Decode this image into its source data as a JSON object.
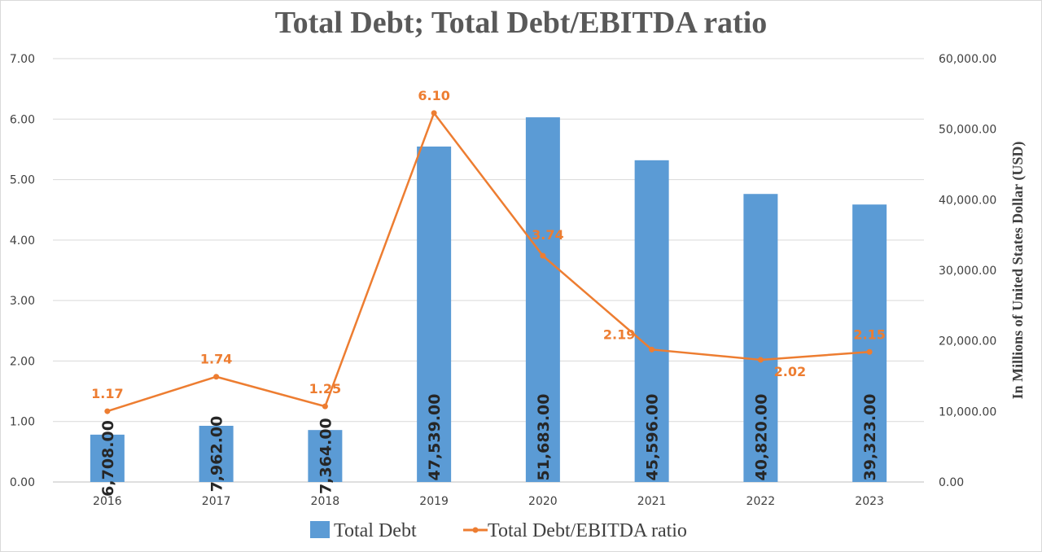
{
  "chart_data": {
    "type": "bar+line",
    "title": "Total Debt; Total Debt/EBITDA ratio",
    "categories": [
      "2016",
      "2017",
      "2018",
      "2019",
      "2020",
      "2021",
      "2022",
      "2023"
    ],
    "series": [
      {
        "name": "Total Debt",
        "type": "bar",
        "axis": "right",
        "color": "#5b9bd5",
        "values": [
          6708,
          7962,
          7364,
          47539,
          51683,
          45596,
          40820,
          39323
        ],
        "labels": [
          "6,708.00",
          "7,962.00",
          "7,364.00",
          "47,539.00",
          "51,683.00",
          "45,596.00",
          "40,820.00",
          "39,323.00"
        ]
      },
      {
        "name": "Total Debt/EBITDA ratio",
        "type": "line",
        "axis": "left",
        "color": "#ed7d31",
        "values": [
          1.17,
          1.74,
          1.25,
          6.1,
          3.74,
          2.19,
          2.02,
          2.15
        ],
        "labels": [
          "1.17",
          "1.74",
          "1.25",
          "6.10",
          "3.74",
          "2.19",
          "2.02",
          "2.15"
        ]
      }
    ],
    "y_left": {
      "range": [
        0,
        7
      ],
      "ticks": [
        "0.00",
        "1.00",
        "2.00",
        "3.00",
        "4.00",
        "5.00",
        "6.00",
        "7.00"
      ]
    },
    "y_right": {
      "label": "In Millions of United States Dollar (USD)",
      "range": [
        0,
        60000
      ],
      "ticks": [
        "0.00",
        "10,000.00",
        "20,000.00",
        "30,000.00",
        "40,000.00",
        "50,000.00",
        "60,000.00"
      ]
    },
    "grid": true,
    "legend": "bottom"
  }
}
